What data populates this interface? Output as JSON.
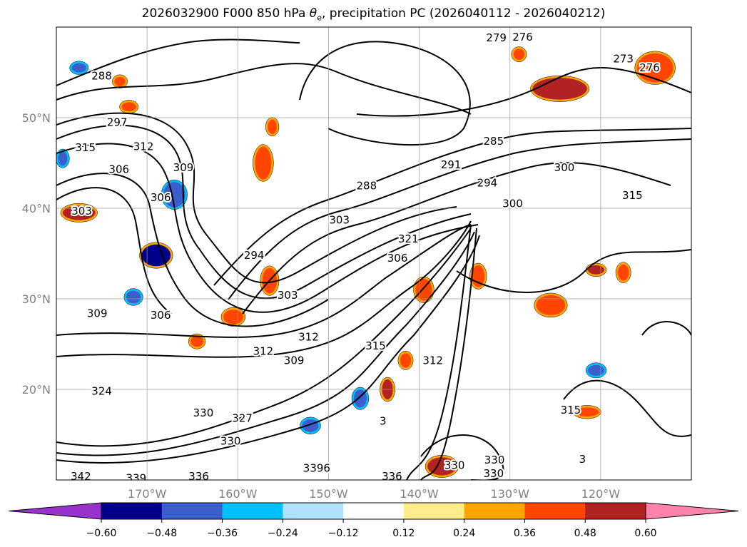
{
  "title": {
    "prefix": "2026032900 F000 850 hPa ",
    "symbol": "θ",
    "subscript": "e",
    "suffix": ", precipitation PC (2026040112 - 2026040212)"
  },
  "map": {
    "lon_range": [
      -180,
      -110
    ],
    "lat_range": [
      10,
      60
    ],
    "lat_ticks": [
      {
        "value": 50,
        "label": "50°N"
      },
      {
        "value": 40,
        "label": "40°N"
      },
      {
        "value": 30,
        "label": "30°N"
      },
      {
        "value": 20,
        "label": "20°N"
      }
    ],
    "lon_ticks": [
      {
        "value": -170,
        "label": "170°W"
      },
      {
        "value": -160,
        "label": "160°W"
      },
      {
        "value": -150,
        "label": "150°W"
      },
      {
        "value": -140,
        "label": "140°W"
      },
      {
        "value": -130,
        "label": "130°W"
      },
      {
        "value": -120,
        "label": "120°W"
      }
    ],
    "contour_labels": [
      {
        "text": "279",
        "lon": -131.5,
        "lat": 58.8
      },
      {
        "text": "276",
        "lon": -128.6,
        "lat": 58.9
      },
      {
        "text": "273",
        "lon": -117.5,
        "lat": 56.5
      },
      {
        "text": "276",
        "lon": -114.6,
        "lat": 55.5
      },
      {
        "text": "288",
        "lon": -175,
        "lat": 54.6
      },
      {
        "text": "297",
        "lon": -173.3,
        "lat": 49.5
      },
      {
        "text": "315",
        "lon": -176.8,
        "lat": 46.7
      },
      {
        "text": "312",
        "lon": -170.4,
        "lat": 46.8
      },
      {
        "text": "309",
        "lon": -166,
        "lat": 44.5
      },
      {
        "text": "306",
        "lon": -173.1,
        "lat": 44.3
      },
      {
        "text": "306",
        "lon": -168.5,
        "lat": 41.2
      },
      {
        "text": "303",
        "lon": -177.2,
        "lat": 39.7
      },
      {
        "text": "285",
        "lon": -131.8,
        "lat": 47.4
      },
      {
        "text": "291",
        "lon": -136.5,
        "lat": 44.8
      },
      {
        "text": "288",
        "lon": -145.8,
        "lat": 42.5
      },
      {
        "text": "294",
        "lon": -132.5,
        "lat": 42.8
      },
      {
        "text": "300",
        "lon": -124,
        "lat": 44.5
      },
      {
        "text": "300",
        "lon": -129.7,
        "lat": 40.5
      },
      {
        "text": "315",
        "lon": -116.5,
        "lat": 41.4
      },
      {
        "text": "303",
        "lon": -148.8,
        "lat": 38.7
      },
      {
        "text": "321",
        "lon": -141.2,
        "lat": 36.6
      },
      {
        "text": "306",
        "lon": -142.4,
        "lat": 34.5
      },
      {
        "text": "294",
        "lon": -158.2,
        "lat": 34.8
      },
      {
        "text": "303",
        "lon": -154.5,
        "lat": 30.4
      },
      {
        "text": "309",
        "lon": -175.5,
        "lat": 28.4
      },
      {
        "text": "306",
        "lon": -168.5,
        "lat": 28.2
      },
      {
        "text": "312",
        "lon": -152.2,
        "lat": 25.8
      },
      {
        "text": "312",
        "lon": -157.2,
        "lat": 24.2
      },
      {
        "text": "309",
        "lon": -153.8,
        "lat": 23.2
      },
      {
        "text": "315",
        "lon": -144.8,
        "lat": 24.8
      },
      {
        "text": "312",
        "lon": -138.5,
        "lat": 23.2
      },
      {
        "text": "324",
        "lon": -175,
        "lat": 19.8
      },
      {
        "text": "330",
        "lon": -163.8,
        "lat": 17.4
      },
      {
        "text": "327",
        "lon": -159.5,
        "lat": 16.8
      },
      {
        "text": "330",
        "lon": -160.8,
        "lat": 14.3
      },
      {
        "text": "315",
        "lon": -123.3,
        "lat": 17.7
      },
      {
        "text": "330",
        "lon": -136.1,
        "lat": 11.6
      },
      {
        "text": "330",
        "lon": -131.7,
        "lat": 12.2
      },
      {
        "text": "330",
        "lon": -131.8,
        "lat": 10.7
      },
      {
        "text": "3396",
        "lon": -151.3,
        "lat": 11.3
      },
      {
        "text": "342",
        "lon": -177.3,
        "lat": 10.4
      },
      {
        "text": "339",
        "lon": -171.2,
        "lat": 10.2
      },
      {
        "text": "336",
        "lon": -164.3,
        "lat": 10.4
      },
      {
        "text": "336",
        "lon": -143,
        "lat": 10.4
      },
      {
        "text": "3",
        "lon": -122,
        "lat": 12.3
      },
      {
        "text": "3",
        "lon": -144,
        "lat": 16.5
      }
    ]
  },
  "colorbar": {
    "colors": [
      "#9932CC",
      "#00008B",
      "#3A5FCD",
      "#00BFFF",
      "#B0E2FF",
      "#FFFFFF",
      "#FFEC8B",
      "#FFA500",
      "#FF4500",
      "#B22222",
      "#FF82AB"
    ],
    "tick_labels": [
      "−0.60",
      "−0.48",
      "−0.36",
      "−0.24",
      "−0.12",
      "0.12",
      "0.24",
      "0.36",
      "0.48",
      "0.60"
    ]
  },
  "precip_blobs": [
    {
      "lon": -124.5,
      "lat": 53.2,
      "rx": 3,
      "ry": 1.2,
      "color": "#B22222"
    },
    {
      "lon": -114,
      "lat": 55.5,
      "rx": 2,
      "ry": 1.6,
      "color": "#FF4500"
    },
    {
      "lon": -129,
      "lat": 57,
      "rx": 0.6,
      "ry": 0.6,
      "color": "#FF4500"
    },
    {
      "lon": -177.5,
      "lat": 39.5,
      "rx": 1.8,
      "ry": 0.8,
      "color": "#B22222"
    },
    {
      "lon": -169,
      "lat": 34.8,
      "rx": 1.6,
      "ry": 1.2,
      "color": "#00008B"
    },
    {
      "lon": -167,
      "lat": 41.5,
      "rx": 1.2,
      "ry": 1.4,
      "color": "#3A5FCD"
    },
    {
      "lon": -156.5,
      "lat": 32,
      "rx": 0.8,
      "ry": 1.4,
      "color": "#FF4500"
    },
    {
      "lon": -160.5,
      "lat": 28,
      "rx": 1.1,
      "ry": 0.8,
      "color": "#FF4500"
    },
    {
      "lon": -157.2,
      "lat": 45,
      "rx": 0.9,
      "ry": 1.8,
      "color": "#FF4500"
    },
    {
      "lon": -156.2,
      "lat": 49,
      "rx": 0.5,
      "ry": 0.8,
      "color": "#FF4500"
    },
    {
      "lon": -139.5,
      "lat": 31,
      "rx": 0.9,
      "ry": 1.2,
      "color": "#FF4500"
    },
    {
      "lon": -133.5,
      "lat": 32.5,
      "rx": 0.7,
      "ry": 1.2,
      "color": "#FF4500"
    },
    {
      "lon": -125.5,
      "lat": 29.3,
      "rx": 1.6,
      "ry": 1.1,
      "color": "#FF4500"
    },
    {
      "lon": -120.5,
      "lat": 33.2,
      "rx": 0.9,
      "ry": 0.5,
      "color": "#B22222"
    },
    {
      "lon": -117.5,
      "lat": 32.9,
      "rx": 0.6,
      "ry": 0.9,
      "color": "#FF4500"
    },
    {
      "lon": -143.5,
      "lat": 20,
      "rx": 0.6,
      "ry": 1.1,
      "color": "#B22222"
    },
    {
      "lon": -141.5,
      "lat": 23.2,
      "rx": 0.6,
      "ry": 0.8,
      "color": "#FF4500"
    },
    {
      "lon": -164.5,
      "lat": 25.3,
      "rx": 0.7,
      "ry": 0.6,
      "color": "#FF4500"
    },
    {
      "lon": -137.5,
      "lat": 11.5,
      "rx": 1.6,
      "ry": 1,
      "color": "#B22222"
    },
    {
      "lon": -121.5,
      "lat": 17.5,
      "rx": 1.3,
      "ry": 0.5,
      "color": "#FF4500"
    },
    {
      "lon": -152,
      "lat": 16,
      "rx": 0.9,
      "ry": 0.7,
      "color": "#3A5FCD"
    },
    {
      "lon": -146.5,
      "lat": 19,
      "rx": 0.7,
      "ry": 1,
      "color": "#3A5FCD"
    },
    {
      "lon": -171.5,
      "lat": 30.2,
      "rx": 0.8,
      "ry": 0.7,
      "color": "#3A5FCD"
    },
    {
      "lon": -120.5,
      "lat": 22.1,
      "rx": 0.9,
      "ry": 0.6,
      "color": "#3A5FCD"
    },
    {
      "lon": -177.5,
      "lat": 55.5,
      "rx": 0.8,
      "ry": 0.5,
      "color": "#3A5FCD"
    },
    {
      "lon": -179.3,
      "lat": 45.5,
      "rx": 0.5,
      "ry": 0.8,
      "color": "#3A5FCD"
    },
    {
      "lon": -173,
      "lat": 54,
      "rx": 0.6,
      "ry": 0.5,
      "color": "#FF4500"
    },
    {
      "lon": -172,
      "lat": 51.2,
      "rx": 0.8,
      "ry": 0.5,
      "color": "#FF4500"
    }
  ]
}
